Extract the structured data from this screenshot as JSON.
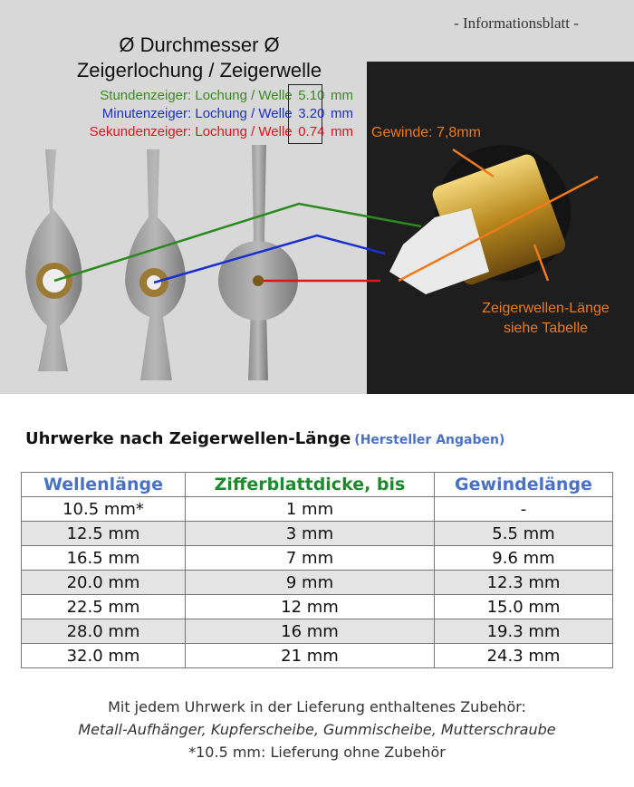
{
  "header": {
    "info_label": "- Informationsblatt -",
    "title_line1": "Ø Durchmesser Ø",
    "title_line2": "Zeigerlochung / Zeigerwelle"
  },
  "specs": [
    {
      "label": "Stundenzeiger: Lochung / Welle",
      "value": "5.10",
      "unit": "mm",
      "color": "#3a8a1e"
    },
    {
      "label": "Minutenzeiger: Lochung / Welle",
      "value": "3.20",
      "unit": "mm",
      "color": "#1a2fd0"
    },
    {
      "label": "Sekundenzeiger: Lochung / Welle",
      "value": "0.74",
      "unit": "mm",
      "color": "#e0141c"
    }
  ],
  "annotations": {
    "thread": "Gewinde: 7,8mm",
    "shaft_line1": "Zeigerwellen-Länge",
    "shaft_line2": "siehe Tabelle",
    "color": "#f07a1a"
  },
  "table": {
    "title": "Uhrwerke nach Zeigerwellen-Länge",
    "subtitle": "(Hersteller Angaben)",
    "headers": [
      {
        "label": "Wellenlänge",
        "color": "#4a72c4"
      },
      {
        "label": "Zifferblattdicke, bis",
        "color": "#1e8a2e"
      },
      {
        "label": "Gewindelänge",
        "color": "#4a72c4"
      }
    ],
    "rows": [
      [
        "10.5 mm*",
        "1 mm",
        "-"
      ],
      [
        "12.5 mm",
        "3 mm",
        "5.5 mm"
      ],
      [
        "16.5 mm",
        "7 mm",
        "9.6 mm"
      ],
      [
        "20.0 mm",
        "9 mm",
        "12.3 mm"
      ],
      [
        "22.5 mm",
        "12 mm",
        "15.0 mm"
      ],
      [
        "28.0 mm",
        "16 mm",
        "19.3 mm"
      ],
      [
        "32.0 mm",
        "21 mm",
        "24.3 mm"
      ]
    ]
  },
  "footer": {
    "line1": "Mit jedem Uhrwerk in der Lieferung enthaltenes Zubehör:",
    "line2": "Metall-Aufhänger, Kupferscheibe, Gummischeibe, Mutterschraube",
    "line3": "*10.5 mm: Lieferung ohne Zubehör"
  }
}
